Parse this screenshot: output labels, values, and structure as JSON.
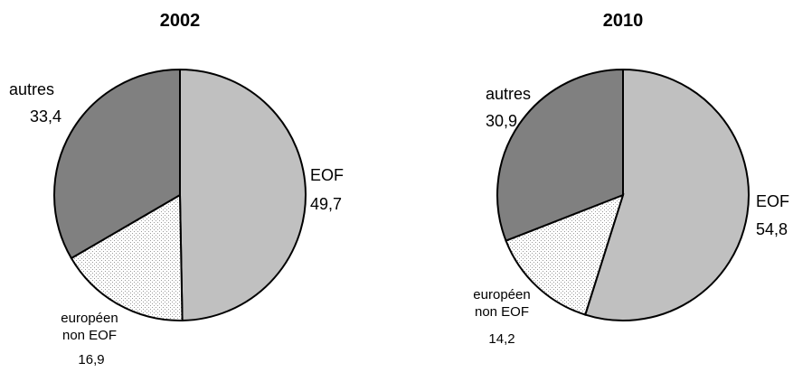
{
  "chart_data": [
    {
      "type": "pie",
      "title": "2002",
      "categories": [
        "EOF",
        "européen non EOF",
        "autres"
      ],
      "values": [
        49.7,
        16.9,
        33.4
      ],
      "value_labels": [
        "49,7",
        "16,9",
        "33,4"
      ],
      "colors": [
        "#c0c0c0",
        "dots",
        "#808080"
      ]
    },
    {
      "type": "pie",
      "title": "2010",
      "categories": [
        "EOF",
        "européen non EOF",
        "autres"
      ],
      "values": [
        54.8,
        14.2,
        30.9
      ],
      "value_labels": [
        "54,8",
        "14,2",
        "30,9"
      ],
      "colors": [
        "#c0c0c0",
        "dots",
        "#808080"
      ]
    }
  ]
}
